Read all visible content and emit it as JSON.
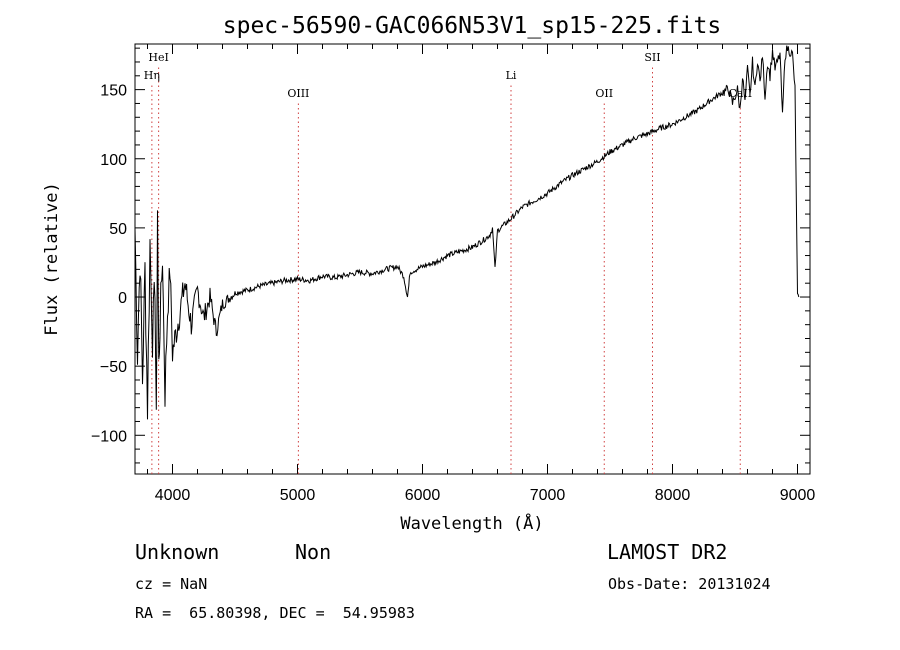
{
  "chart_data": {
    "type": "line",
    "title": "spec-56590-GAC066N53V1_sp15-225.fits",
    "xlabel": "Wavelength (Å)",
    "ylabel": "Flux (relative)",
    "xlim": [
      3700,
      9100
    ],
    "ylim": [
      -128,
      183
    ],
    "xticks": [
      4000,
      5000,
      6000,
      7000,
      8000,
      9000
    ],
    "yticks": [
      -100,
      -50,
      0,
      50,
      100,
      150
    ],
    "grid": false,
    "spectral_lines": [
      {
        "name": "HeI",
        "wavelength": 3889,
        "label_level": 1
      },
      {
        "name": "Hη",
        "wavelength": 3835,
        "label_level": 2
      },
      {
        "name": "OIII",
        "wavelength": 5007,
        "label_level": 3
      },
      {
        "name": "Li",
        "wavelength": 6708,
        "label_level": 2
      },
      {
        "name": "OII",
        "wavelength": 7454,
        "label_level": 3
      },
      {
        "name": "SII",
        "wavelength": 7840,
        "label_level": 1
      },
      {
        "name": "CaII",
        "wavelength": 8542,
        "label_level": 3
      }
    ],
    "series": [
      {
        "x": [
          3700,
          3720,
          3740,
          3760,
          3780,
          3800,
          3820,
          3840,
          3860,
          3870,
          3880,
          3890,
          3900,
          3920,
          3940,
          3960,
          3980,
          4000,
          4050,
          4100,
          4150,
          4200,
          4250,
          4300,
          4350,
          4400,
          4500,
          4600,
          4700,
          4800,
          4900,
          5000,
          5100,
          5200,
          5300,
          5400,
          5500,
          5600,
          5700,
          5800,
          5850,
          5870,
          5880,
          5890,
          5900,
          5950,
          6000,
          6100,
          6200,
          6300,
          6400,
          6500,
          6540,
          6560,
          6580,
          6600,
          6700,
          6800,
          6900,
          7000,
          7100,
          7200,
          7300,
          7400,
          7500,
          7600,
          7700,
          7800,
          7900,
          8000,
          8100,
          8200,
          8300,
          8400,
          8450,
          8480,
          8500,
          8520,
          8540,
          8560,
          8580,
          8600,
          8620,
          8640,
          8660,
          8680,
          8700,
          8720,
          8740,
          8760,
          8780,
          8800,
          8820,
          8840,
          8860,
          8880,
          8900,
          8920,
          8940,
          8960,
          8980,
          9000,
          9010
        ],
        "y": [
          50,
          -40,
          30,
          -60,
          20,
          -80,
          40,
          -30,
          10,
          -95,
          65,
          -50,
          -20,
          30,
          -70,
          -10,
          20,
          -40,
          -15,
          10,
          -20,
          5,
          -15,
          0,
          -25,
          -5,
          3,
          5,
          8,
          10,
          12,
          13,
          12,
          15,
          14,
          16,
          18,
          17,
          20,
          22,
          15,
          5,
          0,
          8,
          18,
          20,
          22,
          25,
          30,
          33,
          36,
          42,
          45,
          50,
          20,
          48,
          56,
          65,
          70,
          75,
          82,
          88,
          93,
          98,
          105,
          110,
          115,
          118,
          122,
          125,
          130,
          135,
          142,
          148,
          150,
          140,
          145,
          150,
          135,
          160,
          140,
          165,
          145,
          170,
          150,
          172,
          155,
          175,
          145,
          170,
          160,
          178,
          165,
          170,
          176,
          130,
          175,
          180,
          178,
          175,
          150,
          0,
          0
        ],
        "note": "Noisy stellar spectrum, flux rising from ~0 at 4500 Å to ~180 at 9000 Å"
      }
    ]
  },
  "info": {
    "class": "Unknown",
    "subclass": "Non",
    "survey": "LAMOST DR2",
    "cz": "cz = NaN",
    "obs_date": "Obs-Date: 20131024",
    "coords": "RA =  65.80398, DEC =  54.95983"
  }
}
